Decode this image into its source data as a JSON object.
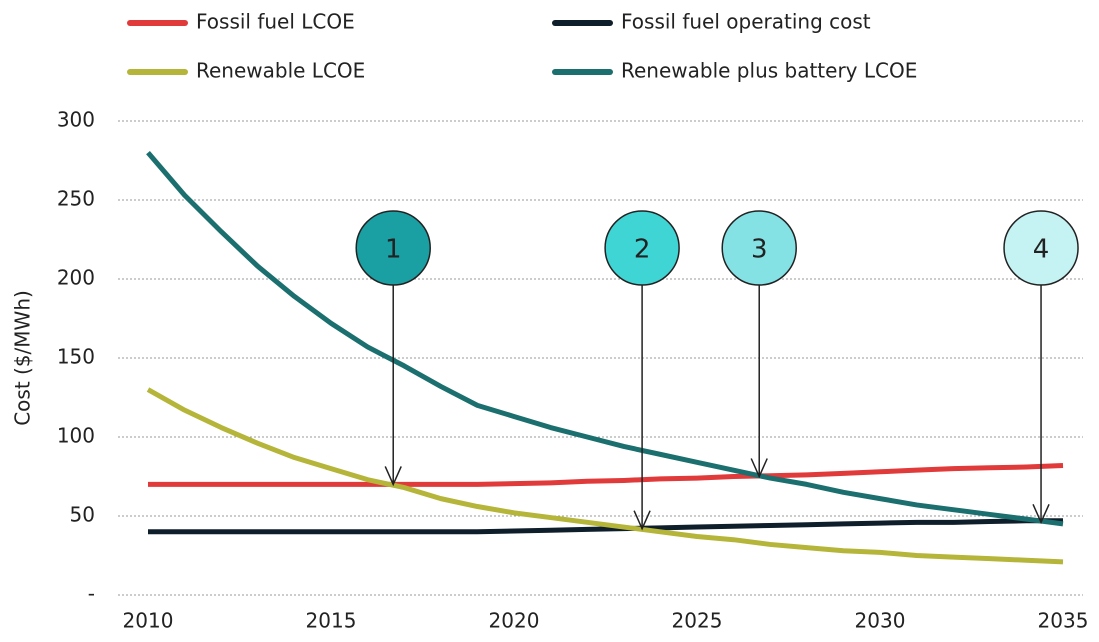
{
  "chart_data": {
    "type": "line",
    "y_label": "Cost ($/MWh)",
    "x": [
      2010,
      2011,
      2012,
      2013,
      2014,
      2015,
      2016,
      2017,
      2018,
      2019,
      2020,
      2021,
      2022,
      2023,
      2024,
      2025,
      2026,
      2027,
      2028,
      2029,
      2030,
      2031,
      2032,
      2033,
      2034,
      2035
    ],
    "series": [
      {
        "name": "Fossil fuel LCOE",
        "color": "#e03a3a",
        "values": [
          70,
          70,
          70,
          70,
          70,
          70,
          70,
          70,
          70,
          70,
          70.5,
          71,
          72,
          72.5,
          73.5,
          74,
          75,
          75.5,
          76,
          77,
          78,
          79,
          80,
          80.5,
          81,
          82
        ]
      },
      {
        "name": "Fossil fuel operating cost",
        "color": "#0e1e2b",
        "values": [
          40,
          40,
          40,
          40,
          40,
          40,
          40,
          40,
          40,
          40,
          40.5,
          41,
          41.5,
          42,
          42.5,
          43,
          43.5,
          44,
          44.5,
          45,
          45.5,
          46,
          46,
          46.5,
          47,
          47
        ]
      },
      {
        "name": "Renewable LCOE",
        "color": "#b5b53a",
        "values": [
          130,
          117,
          106,
          96,
          87,
          80,
          73,
          68,
          61,
          56,
          52,
          49,
          46,
          43,
          40,
          37,
          35,
          32,
          30,
          28,
          27,
          25,
          24,
          23,
          22,
          21
        ]
      },
      {
        "name": "Renewable plus battery LCOE",
        "color": "#1b6f6e",
        "values": [
          280,
          253,
          230,
          208,
          189,
          172,
          157,
          145,
          132,
          120,
          113,
          106,
          100,
          94,
          89,
          84,
          79,
          74,
          70,
          65,
          61,
          57,
          54,
          51,
          48,
          45
        ]
      }
    ],
    "xlim": [
      2010,
      2035
    ],
    "xticks": [
      2010,
      2015,
      2020,
      2025,
      2030,
      2035
    ],
    "ylim": [
      0,
      300
    ],
    "yticks": [
      {
        "value": 0,
        "label": "-"
      },
      50,
      100,
      150,
      200,
      250,
      300
    ],
    "grid": true,
    "annotations": [
      {
        "label": "1",
        "x": 2016.7,
        "y": 70,
        "color": "#1a9fa3"
      },
      {
        "label": "2",
        "x": 2023.5,
        "y": 42,
        "color": "#40d5d5"
      },
      {
        "label": "3",
        "x": 2026.7,
        "y": 75,
        "color": "#84e2e5"
      },
      {
        "label": "4",
        "x": 2034.4,
        "y": 46,
        "color": "#c5f2f2"
      }
    ]
  }
}
